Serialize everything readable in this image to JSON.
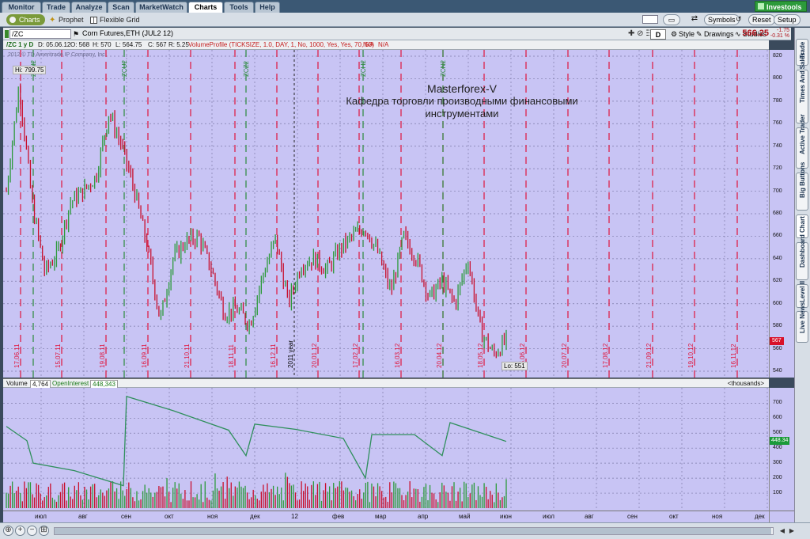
{
  "topnav": {
    "tabs": [
      "Monitor",
      "Trade",
      "Analyze",
      "Scan",
      "MarketWatch",
      "Charts",
      "Tools",
      "Help"
    ],
    "active": "Charts",
    "brand": "Investools"
  },
  "subbar": {
    "charts": "Charts",
    "prophet": "Prophet",
    "flexible_grid": "Flexible Grid",
    "symbols": "Symbols",
    "reset": "Reset",
    "setup": "Setup"
  },
  "chartbar": {
    "symbol": "/ZC",
    "symbol_name": "Corn Futures,ETH (JUL2 12)",
    "aggregation": "D",
    "style": "Style",
    "drawings": "Drawings",
    "studies": "Studies",
    "last_price": "566.25",
    "change": "-1.75",
    "change_pct": "-0.31 %"
  },
  "infobar": {
    "label": "/ZC 1 y D",
    "date": "D: 05.06.12",
    "open": "O: 568",
    "high": "H: 570",
    "low": "L: 564.75",
    "close": "C: 567",
    "range": "R: 5.25",
    "study": "VolumeProfile (TICKSIZE, 1.0, DAY, 1, No, 1000, Yes, Yes, 70, 50)",
    "na1": "N/A",
    "na2": "N/A"
  },
  "main": {
    "copyright": "2012 © TD Ameritrade IP Company, Inc.",
    "watermark_line1": "Masterforex-V",
    "watermark_line2": "Кафедра торговли производными финансовыми",
    "watermark_line3": "инструментами",
    "hi_label": "Hi: 799.75",
    "lo_label": "Lo: 551",
    "price_tag": "567",
    "year_label": "2011 year",
    "date_labels": [
      "17.06.11",
      "15.07.11",
      "19.08.11",
      "16.09.11",
      "21.10.11",
      "18.11.11",
      "16.12.11",
      "20.01.12",
      "17.02.12",
      "16.03.12",
      "20.04.12",
      "18.05.12",
      "15.06.12",
      "20.07.12",
      "17.08.12",
      "21.09.12",
      "19.10.12",
      "16.11.12"
    ],
    "rollover_labels": [
      "ZCN2",
      "ZCU2",
      "ZCZ2",
      "ZCH2",
      "ZCK2",
      "ZCN2"
    ],
    "y_ticks": [
      820,
      800,
      780,
      760,
      740,
      720,
      700,
      680,
      660,
      640,
      620,
      600,
      580,
      560,
      540
    ]
  },
  "volume": {
    "label": "Volume",
    "value": "4,764",
    "oi_label": "OpenInterest",
    "oi_value": "448,343",
    "units": "<thousands>",
    "oi_tag": "448.34",
    "y_ticks": [
      700,
      600,
      500,
      400,
      300,
      200,
      100
    ]
  },
  "xaxis": {
    "labels": [
      "июл",
      "авг",
      "сен",
      "окт",
      "ноя",
      "дек",
      "12",
      "фев",
      "мар",
      "апр",
      "май",
      "июн",
      "июл",
      "авг",
      "сен",
      "окт",
      "ноя",
      "дек"
    ]
  },
  "rightrail": {
    "tabs": [
      "Trade",
      "Times And Sales",
      "Active Trader",
      "Big Buttons",
      "Chart",
      "Dashboard",
      "Level II",
      "Live News"
    ]
  },
  "colors": {
    "chart_bg": "#c8c4f4",
    "up_bar": "#2d9a3c",
    "down_bar": "#c8102e",
    "event_line_red": "#e0143c",
    "event_line_green": "#2a8a3a",
    "oi_line": "#2f8f5c"
  },
  "chart_data": {
    "type": "bar",
    "title": "/ZC 1 y D",
    "ylim": [
      540,
      820
    ],
    "high": 799.75,
    "low": 551,
    "last": 567,
    "price_path": [
      {
        "month": "июн",
        "value": 700
      },
      {
        "month": "июн",
        "value": 795
      },
      {
        "month": "июл",
        "value": 690
      },
      {
        "month": "июл",
        "value": 628
      },
      {
        "month": "июл",
        "value": 645
      },
      {
        "month": "авг",
        "value": 690
      },
      {
        "month": "авг",
        "value": 700
      },
      {
        "month": "авг",
        "value": 713
      },
      {
        "month": "сен",
        "value": 770
      },
      {
        "month": "сен",
        "value": 740
      },
      {
        "month": "сен",
        "value": 700
      },
      {
        "month": "окт",
        "value": 650
      },
      {
        "month": "окт",
        "value": 585
      },
      {
        "month": "окт",
        "value": 640
      },
      {
        "month": "ноя",
        "value": 655
      },
      {
        "month": "ноя",
        "value": 660
      },
      {
        "month": "ноя",
        "value": 630
      },
      {
        "month": "дек",
        "value": 592
      },
      {
        "month": "дек",
        "value": 595
      },
      {
        "month": "дек",
        "value": 582
      },
      {
        "month": "дек",
        "value": 625
      },
      {
        "month": "янв",
        "value": 658
      },
      {
        "month": "янв",
        "value": 600
      },
      {
        "month": "янв",
        "value": 635
      },
      {
        "month": "фев",
        "value": 640
      },
      {
        "month": "фев",
        "value": 630
      },
      {
        "month": "фев",
        "value": 648
      },
      {
        "month": "мар",
        "value": 660
      },
      {
        "month": "мар",
        "value": 668
      },
      {
        "month": "мар",
        "value": 645
      },
      {
        "month": "апр",
        "value": 610
      },
      {
        "month": "апр",
        "value": 660
      },
      {
        "month": "апр",
        "value": 640
      },
      {
        "month": "май",
        "value": 605
      },
      {
        "month": "май",
        "value": 620
      },
      {
        "month": "май",
        "value": 600
      },
      {
        "month": "июн",
        "value": 640
      },
      {
        "month": "июн",
        "value": 575
      },
      {
        "month": "июн",
        "value": 555
      },
      {
        "month": "июн",
        "value": 567
      }
    ],
    "open_interest": [
      {
        "month": "июн",
        "value": 545
      },
      {
        "month": "июл",
        "value": 450
      },
      {
        "month": "июл",
        "value": 300
      },
      {
        "month": "авг",
        "value": 250
      },
      {
        "month": "сен",
        "value": 150
      },
      {
        "month": "сен",
        "value": 745
      },
      {
        "month": "окт",
        "value": 650
      },
      {
        "month": "ноя",
        "value": 520
      },
      {
        "month": "ноя",
        "value": 350
      },
      {
        "month": "дек",
        "value": 560
      },
      {
        "month": "янв",
        "value": 525
      },
      {
        "month": "фев",
        "value": 465
      },
      {
        "month": "мар",
        "value": 200
      },
      {
        "month": "мар",
        "value": 490
      },
      {
        "month": "апр",
        "value": 490
      },
      {
        "month": "май",
        "value": 350
      },
      {
        "month": "май",
        "value": 570
      },
      {
        "month": "июн",
        "value": 445
      }
    ],
    "oi_ylim": [
      0,
      760
    ]
  }
}
